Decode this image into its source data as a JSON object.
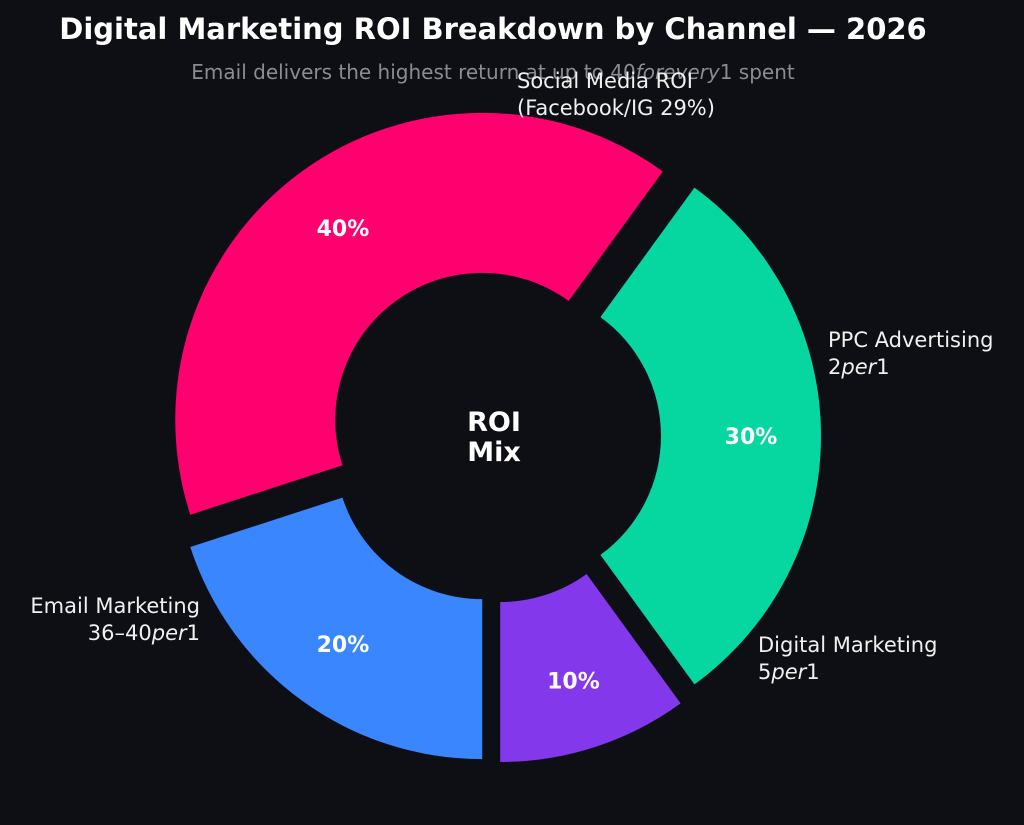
{
  "chart_data": {
    "type": "pie",
    "title": "Digital Marketing ROI Breakdown by Channel — 2026",
    "subtitle_parts": [
      "Email delivers the highest return at up to 40",
      "forevery",
      "1 spent"
    ],
    "center_label": [
      "ROI",
      "Mix"
    ],
    "slices": [
      {
        "name": "Social Media ROI",
        "label_lines": [
          [
            "Social Media ROI"
          ],
          [
            "(Facebook/IG 29%)"
          ]
        ],
        "value": 30,
        "value_label": "30%",
        "color": "#06d6a0"
      },
      {
        "name": "PPC Advertising",
        "label_lines": [
          [
            "PPC Advertising"
          ],
          [
            "2",
            "per",
            "1"
          ]
        ],
        "value": 10,
        "value_label": "10%",
        "color": "#8338ec"
      },
      {
        "name": "Digital Marketing",
        "label_lines": [
          [
            "Digital Marketing"
          ],
          [
            "5",
            "per",
            "1"
          ]
        ],
        "value": 20,
        "value_label": "20%",
        "color": "#3a86ff"
      },
      {
        "name": "Email Marketing",
        "label_lines": [
          [
            "Email Marketing"
          ],
          [
            "36–40",
            "per",
            "1"
          ]
        ],
        "value": 40,
        "value_label": "40%",
        "color": "#ff006e"
      }
    ]
  }
}
